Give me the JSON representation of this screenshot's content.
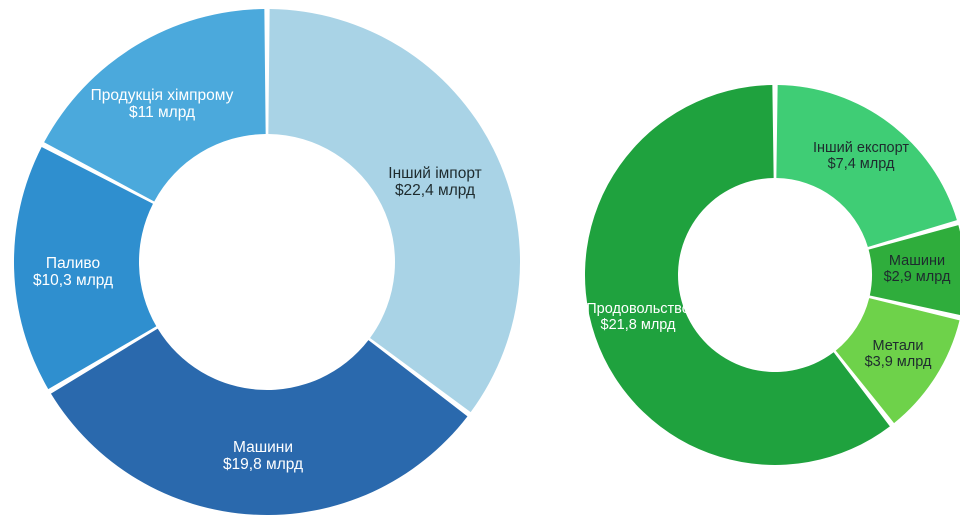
{
  "chart_data": [
    {
      "type": "pie",
      "variant": "donut",
      "units": "млрд $",
      "slices": [
        {
          "name": "Інший імпорт",
          "value": 22.4,
          "label_lines": [
            "Інший імпорт",
            "$22,4 млрд"
          ],
          "color": "#a9d3e6"
        },
        {
          "name": "Машини",
          "value": 19.8,
          "label_lines": [
            "Машини",
            "$19,8 млрд"
          ],
          "color": "#2a69ad"
        },
        {
          "name": "Паливо",
          "value": 10.3,
          "label_lines": [
            "Паливо",
            "$10,3 млрд"
          ],
          "color": "#2f8fcf"
        },
        {
          "name": "Продукція хімпрому",
          "value": 11,
          "label_lines": [
            "Продукція хімпрому",
            "$11 млрд"
          ],
          "color": "#4ba9dc"
        }
      ]
    },
    {
      "type": "pie",
      "variant": "donut",
      "units": "млрд $",
      "slices": [
        {
          "name": "Інший експорт",
          "value": 7.4,
          "label_lines": [
            "Інший експорт",
            "$7,4 млрд"
          ],
          "color": "#3fcd75"
        },
        {
          "name": "Машини",
          "value": 2.9,
          "label_lines": [
            "Машини",
            "$2,9 млрд"
          ],
          "color": "#2fad3c"
        },
        {
          "name": "Метали",
          "value": 3.9,
          "label_lines": [
            "Метали",
            "$3,9 млрд"
          ],
          "color": "#6ed24a"
        },
        {
          "name": "Продовольство",
          "value": 21.8,
          "label_lines": [
            "Продовольство",
            "$21,8 млрд"
          ],
          "color": "#1fa23e"
        }
      ]
    }
  ]
}
